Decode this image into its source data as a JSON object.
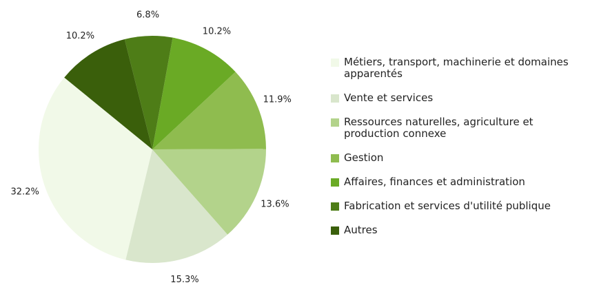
{
  "chart_data": {
    "type": "pie",
    "categories": [
      "Métiers, transport, machinerie et domaines apparentés",
      "Vente et services",
      "Ressources naturelles, agriculture et production connexe",
      "Gestion",
      "Affaires, finances et administration",
      "Fabrication et services d'utilité publique",
      "Autres"
    ],
    "values": [
      32.2,
      15.3,
      13.6,
      11.9,
      10.2,
      6.8,
      10.2
    ],
    "value_labels": [
      "32.2%",
      "15.3%",
      "13.6%",
      "11.9%",
      "10.2%",
      "6.8%",
      "10.2%"
    ],
    "colors": [
      "#f1f9e8",
      "#d9e6cc",
      "#b3d38b",
      "#8fbc4f",
      "#6aaa25",
      "#4e7d17",
      "#3a5f0b"
    ],
    "legend": "right"
  }
}
